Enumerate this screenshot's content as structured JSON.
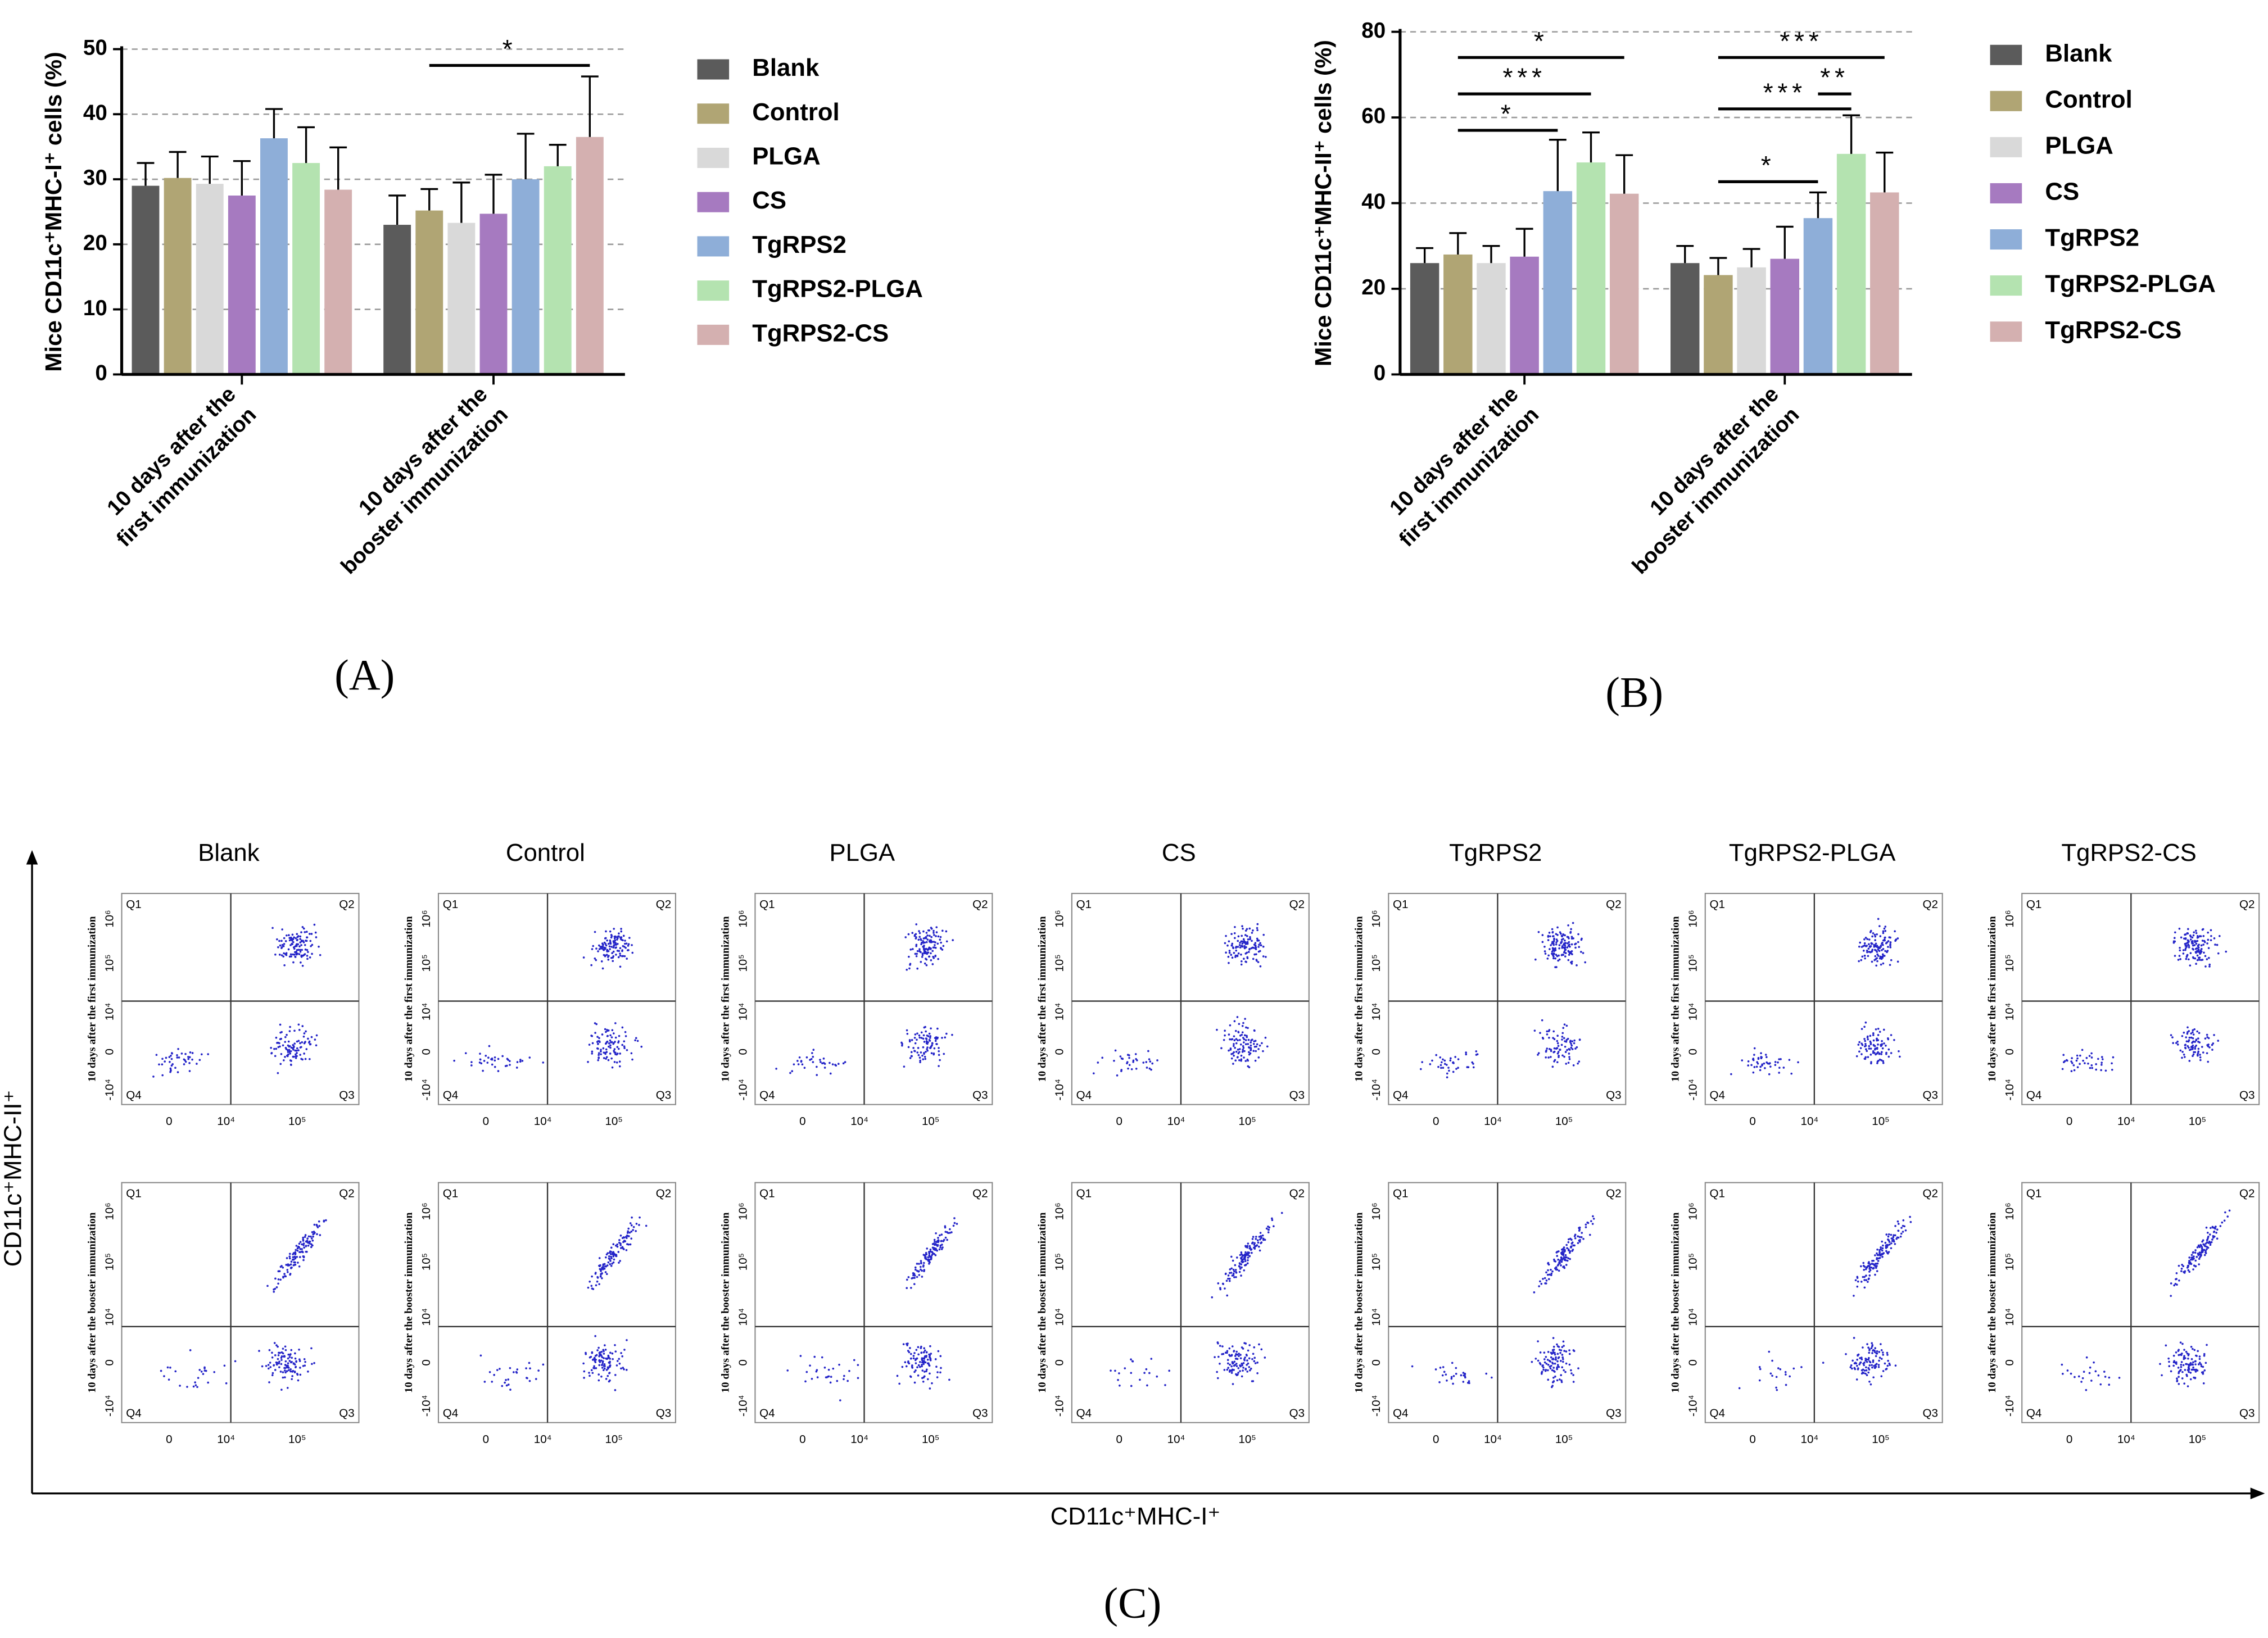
{
  "chart_data": [
    {
      "type": "bar",
      "y_label": "Mice CD11c⁺MHC-I⁺ cells (%)",
      "caption": "(A)",
      "categories": [
        "10 days after the\nfirst immunization",
        "10 days after the\nbooster immunization"
      ],
      "ylim": [
        0,
        50
      ],
      "yticks": [
        0,
        10,
        20,
        30,
        40,
        50
      ],
      "grid": true,
      "series": [
        {
          "name": "Blank",
          "color": "#5b5b5b",
          "values": [
            29,
            23
          ],
          "errors": [
            3.5,
            4.5
          ]
        },
        {
          "name": "Control",
          "color": "#b0a574",
          "values": [
            30.2,
            25.2
          ],
          "errors": [
            4,
            3.3
          ]
        },
        {
          "name": "PLGA",
          "color": "#d9d9d9",
          "values": [
            29.3,
            23.3
          ],
          "errors": [
            4.2,
            6.2
          ]
        },
        {
          "name": "CS",
          "color": "#a67ac0",
          "values": [
            27.5,
            24.7
          ],
          "errors": [
            5.3,
            6
          ]
        },
        {
          "name": "TgRPS2",
          "color": "#8eaed8",
          "values": [
            36.3,
            30
          ],
          "errors": [
            4.5,
            7
          ]
        },
        {
          "name": "TgRPS2-PLGA",
          "color": "#b4e3b0",
          "values": [
            32.5,
            32
          ],
          "errors": [
            5.5,
            3.3
          ]
        },
        {
          "name": "TgRPS2-CS",
          "color": "#d4b0b0",
          "values": [
            28.4,
            36.5
          ],
          "errors": [
            6.5,
            9.3
          ]
        }
      ],
      "annotations": [
        {
          "label": "*",
          "group": 1,
          "from": 1,
          "to": 6,
          "y": 47.5
        }
      ]
    },
    {
      "type": "bar",
      "y_label": "Mice CD11c⁺MHC-II⁺ cells (%)",
      "caption": "(B)",
      "categories": [
        "10 days after the\nfirst immunization",
        "10 days after the\nbooster immunization"
      ],
      "ylim": [
        0,
        80
      ],
      "yticks": [
        0,
        20,
        40,
        60,
        80
      ],
      "grid": true,
      "series": [
        {
          "name": "Blank",
          "color": "#5b5b5b",
          "values": [
            26,
            26
          ],
          "errors": [
            3.5,
            4
          ]
        },
        {
          "name": "Control",
          "color": "#b0a574",
          "values": [
            28,
            23.2
          ],
          "errors": [
            5,
            4
          ]
        },
        {
          "name": "PLGA",
          "color": "#d9d9d9",
          "values": [
            26,
            25
          ],
          "errors": [
            4,
            4.3
          ]
        },
        {
          "name": "CS",
          "color": "#a67ac0",
          "values": [
            27.5,
            27
          ],
          "errors": [
            6.5,
            7.5
          ]
        },
        {
          "name": "TgRPS2",
          "color": "#8eaed8",
          "values": [
            42.8,
            36.5
          ],
          "errors": [
            12,
            6
          ]
        },
        {
          "name": "TgRPS2-PLGA",
          "color": "#b4e3b0",
          "values": [
            49.5,
            51.5
          ],
          "errors": [
            7,
            9
          ]
        },
        {
          "name": "TgRPS2-CS",
          "color": "#d4b0b0",
          "values": [
            42.2,
            42.5
          ],
          "errors": [
            9,
            9.3
          ]
        }
      ],
      "annotations": [
        {
          "label": "*",
          "group": 0,
          "from": 1,
          "to": 6,
          "y": 74
        },
        {
          "label": "***",
          "group": 0,
          "from": 1,
          "to": 5,
          "y": 65.5
        },
        {
          "label": "*",
          "group": 0,
          "from": 1,
          "to": 4,
          "y": 57
        },
        {
          "label": "***",
          "group": 1,
          "from": 1,
          "to": 6,
          "y": 74
        },
        {
          "label": "***",
          "group": 1,
          "from": 1,
          "to": 5,
          "y": 62
        },
        {
          "label": "**",
          "group": 1,
          "from": 4,
          "to": 5,
          "y": 65.5
        },
        {
          "label": "*",
          "group": 1,
          "from": 1,
          "to": 4,
          "y": 45
        }
      ]
    }
  ],
  "flow": {
    "columns": [
      "Blank",
      "Control",
      "PLGA",
      "CS",
      "TgRPS2",
      "TgRPS2-PLGA",
      "TgRPS2-CS"
    ],
    "rows": [
      "10 days after the first immunization",
      "10 days after the booster immunization"
    ],
    "quadrants": [
      "Q1",
      "Q2",
      "Q3",
      "Q4"
    ],
    "xticks": [
      "0",
      "10⁴",
      "10⁵"
    ],
    "yticks": [
      "-10⁴",
      "0",
      "10⁴",
      "10⁵",
      "10⁶"
    ],
    "x_label": "CD11c⁺MHC-I⁺",
    "y_label": "CD11c⁺MHC-II⁺",
    "caption": "(C)"
  }
}
